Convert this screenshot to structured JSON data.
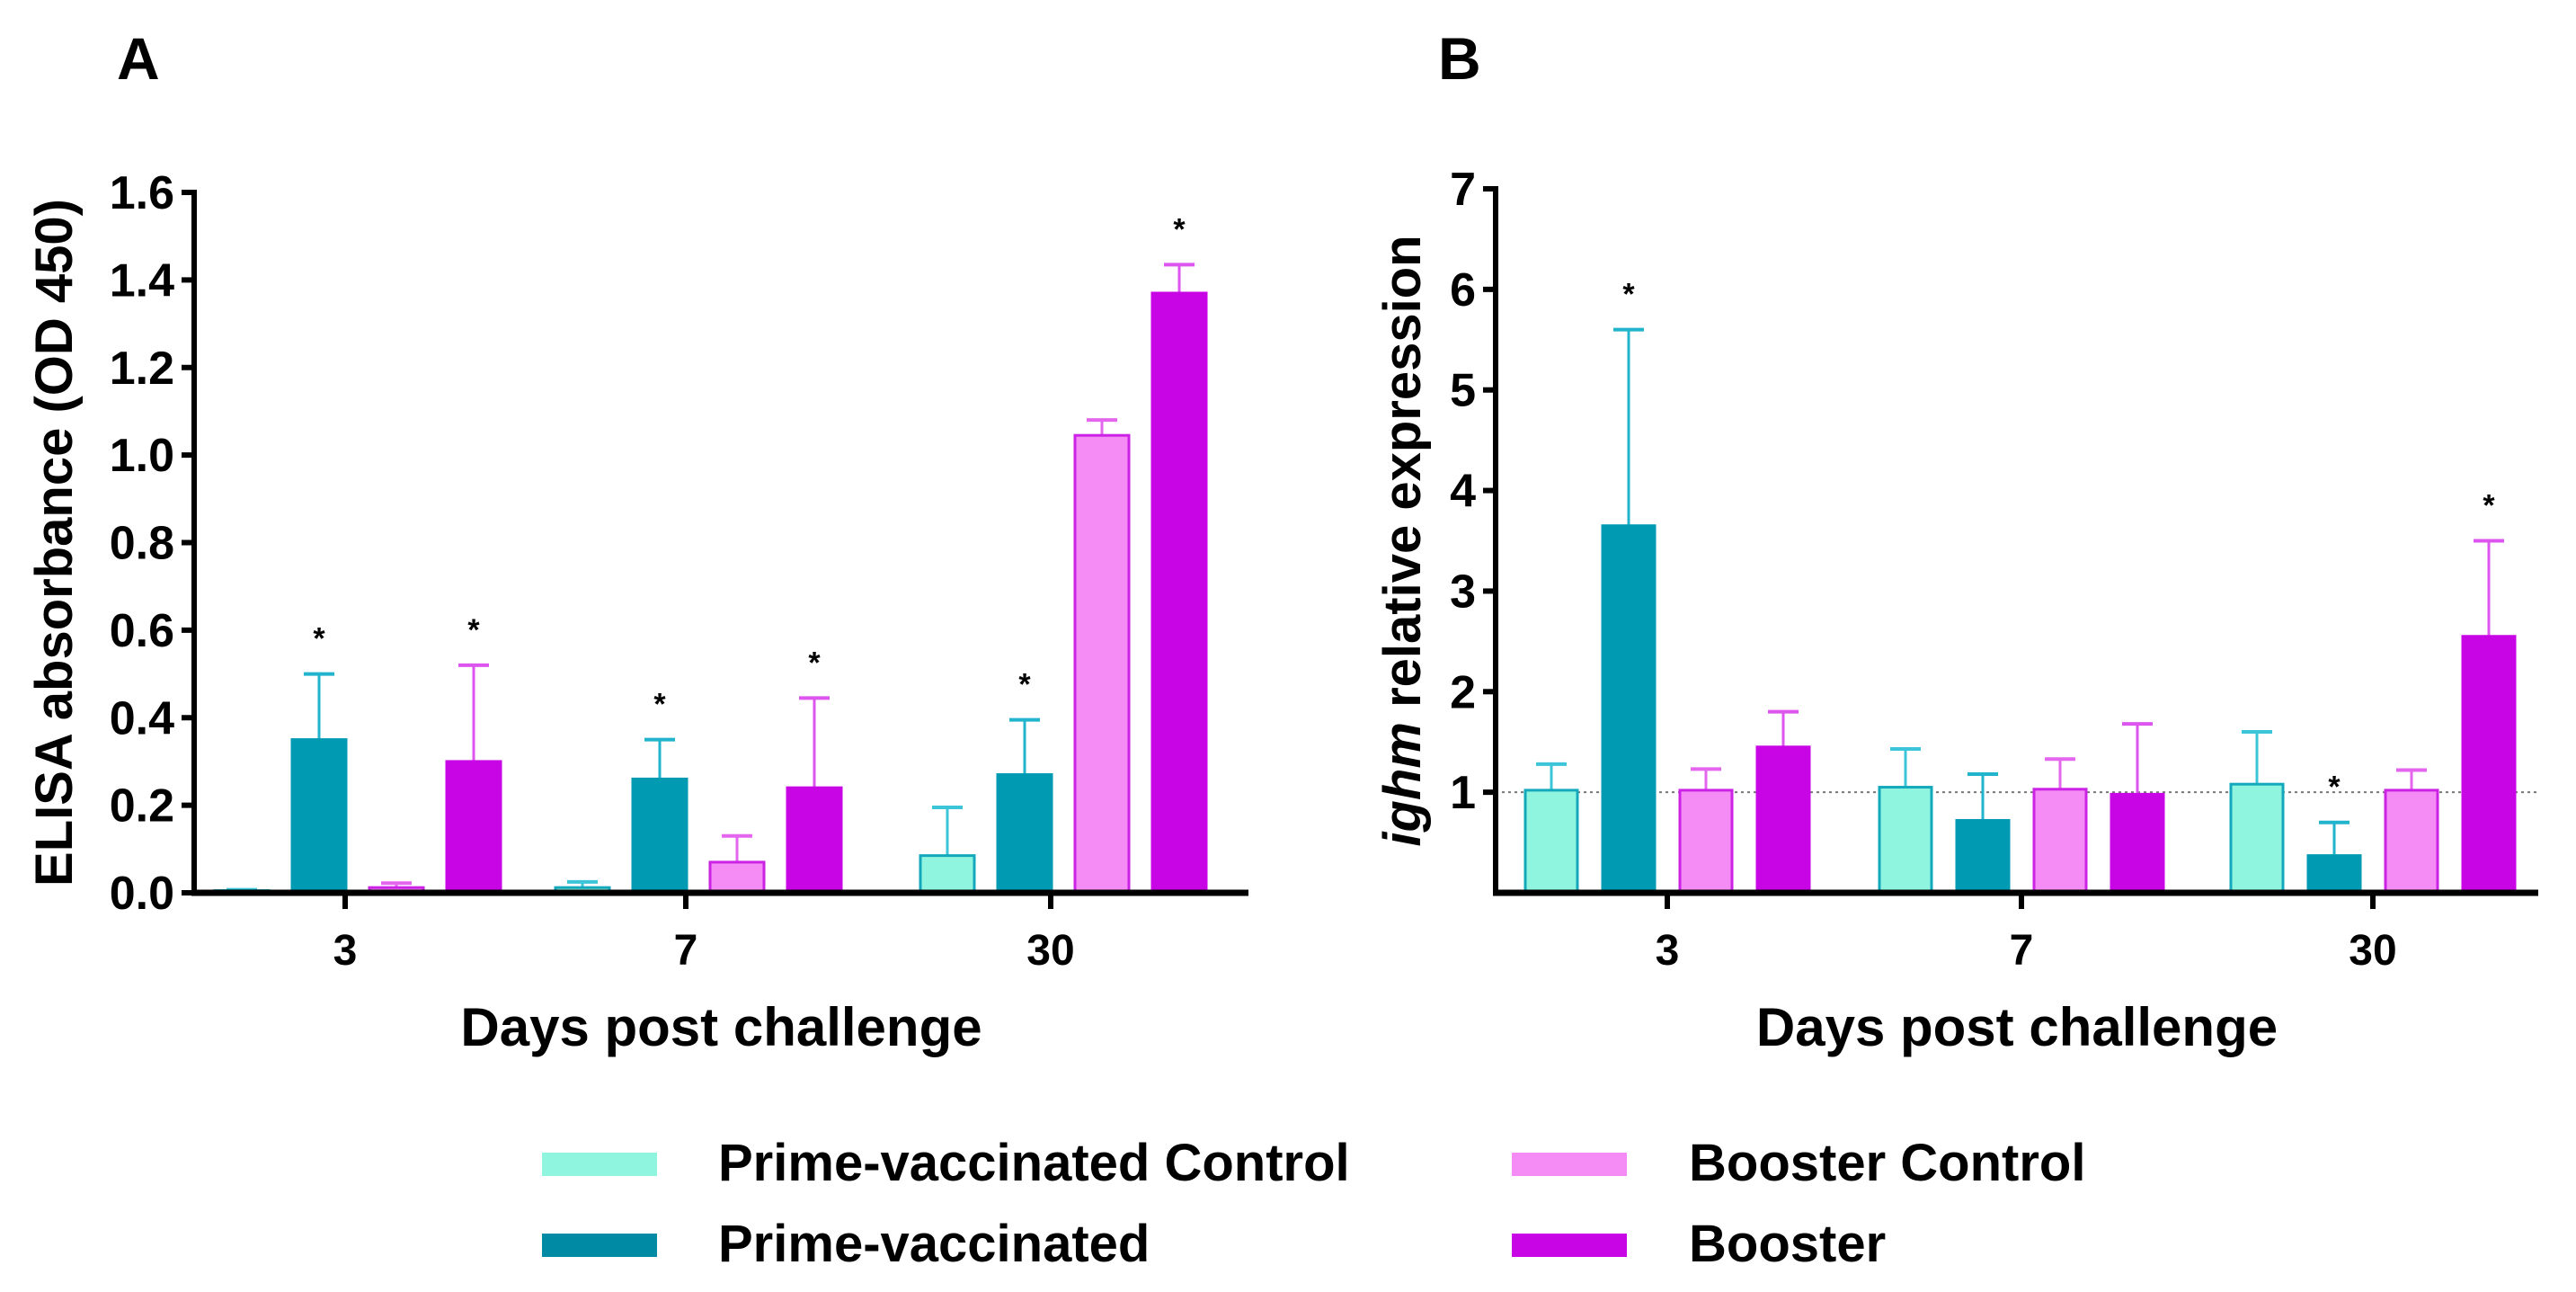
{
  "legend": [
    {
      "name": "Prime-vaccinated Control",
      "fill": "#90f5de",
      "stroke": "#14a8bd",
      "err": "#3cc4d8"
    },
    {
      "name": "Prime-vaccinated",
      "fill": "#009ab3",
      "stroke": "#009ab3",
      "err": "#22b4cc"
    },
    {
      "name": "Booster Control",
      "fill": "#f58cf5",
      "stroke": "#cc22e6",
      "err": "#e466ee"
    },
    {
      "name": "Booster",
      "fill": "#c805e4",
      "stroke": "#c805e4",
      "err": "#dc55ee"
    }
  ],
  "chart_data": [
    {
      "panel": "A",
      "type": "bar",
      "xlabel": "Days post challenge",
      "ylabel": "ELISA absorbance (OD 450)",
      "categories": [
        "3",
        "7",
        "30"
      ],
      "ylim": [
        0,
        1.6
      ],
      "yticks": [
        "0.0",
        "0.2",
        "0.4",
        "0.6",
        "0.8",
        "1.0",
        "1.2",
        "1.4",
        "1.6"
      ],
      "series": [
        {
          "name": "Prime-vaccinated Control",
          "values": [
            0.005,
            0.012,
            0.085
          ],
          "err_upper": [
            0.007,
            0.025,
            0.195
          ],
          "significant": [
            false,
            false,
            false
          ]
        },
        {
          "name": "Prime-vaccinated",
          "values": [
            0.35,
            0.26,
            0.27
          ],
          "err_upper": [
            0.5,
            0.35,
            0.395
          ],
          "significant": [
            true,
            true,
            true
          ]
        },
        {
          "name": "Booster Control",
          "values": [
            0.012,
            0.07,
            1.045
          ],
          "err_upper": [
            0.022,
            0.13,
            1.08
          ],
          "significant": [
            false,
            false,
            false
          ]
        },
        {
          "name": "Booster",
          "values": [
            0.3,
            0.24,
            1.37
          ],
          "err_upper": [
            0.52,
            0.445,
            1.435
          ],
          "significant": [
            true,
            true,
            true
          ]
        }
      ],
      "significance_mark": "*"
    },
    {
      "panel": "B",
      "type": "bar",
      "xlabel": "Days post challenge",
      "ylabel_italic": "ighm",
      "ylabel_rest": " relative expression",
      "categories": [
        "3",
        "7",
        "30"
      ],
      "ylim": [
        0,
        7
      ],
      "yticks": [
        "1",
        "2",
        "3",
        "4",
        "5",
        "6",
        "7"
      ],
      "reference_line": 1,
      "series": [
        {
          "name": "Prime-vaccinated Control",
          "values": [
            1.02,
            1.05,
            1.08
          ],
          "err_upper": [
            1.28,
            1.43,
            1.6
          ],
          "significant": [
            false,
            false,
            false
          ]
        },
        {
          "name": "Prime-vaccinated",
          "values": [
            3.65,
            0.72,
            0.37
          ],
          "err_upper": [
            5.6,
            1.18,
            0.7
          ],
          "significant": [
            true,
            false,
            true
          ]
        },
        {
          "name": "Booster Control",
          "values": [
            1.02,
            1.03,
            1.02
          ],
          "err_upper": [
            1.23,
            1.33,
            1.22
          ],
          "significant": [
            false,
            false,
            false
          ]
        },
        {
          "name": "Booster",
          "values": [
            1.45,
            0.98,
            2.55
          ],
          "err_upper": [
            1.8,
            1.68,
            3.5
          ],
          "significant": [
            false,
            false,
            true
          ]
        }
      ],
      "significance_mark": "*"
    }
  ]
}
